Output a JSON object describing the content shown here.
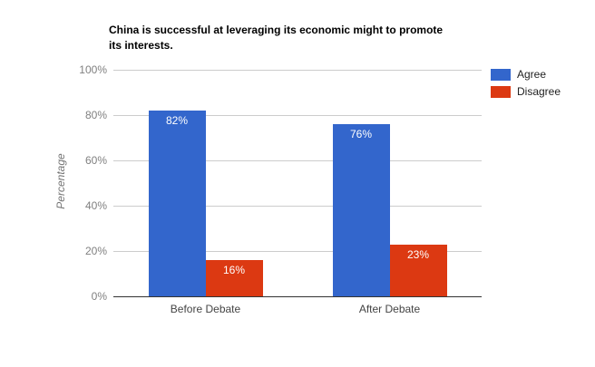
{
  "chart_data": {
    "type": "bar",
    "title": "China is successful at leveraging its economic might to promote its interests.",
    "categories": [
      "Before Debate",
      "After Debate"
    ],
    "series": [
      {
        "name": "Agree",
        "color": "#3366CC",
        "values": [
          82,
          76
        ],
        "value_labels": [
          "82%",
          "76%"
        ]
      },
      {
        "name": "Disagree",
        "color": "#DC3912",
        "values": [
          16,
          23
        ],
        "value_labels": [
          "16%",
          "23%"
        ]
      }
    ],
    "xlabel": "",
    "ylabel": "Percentage",
    "ylim": [
      0,
      100
    ],
    "yticks": [
      0,
      20,
      40,
      60,
      80,
      100
    ],
    "ytick_labels": [
      "0%",
      "20%",
      "40%",
      "60%",
      "80%",
      "100%"
    ],
    "grid": true,
    "legend_position": "top-right"
  },
  "colors": {
    "background": "#FFFFFF",
    "gridline": "#CCCCCC",
    "axis_line": "#333333",
    "title_text": "#000000",
    "ytick_text": "#808080",
    "xtick_text": "#444444",
    "axis_title_text": "#757575",
    "bar_value_text": "#FFFFFF",
    "legend_text": "#222222",
    "series_agree": "#3366CC",
    "series_disagree": "#DC3912"
  }
}
